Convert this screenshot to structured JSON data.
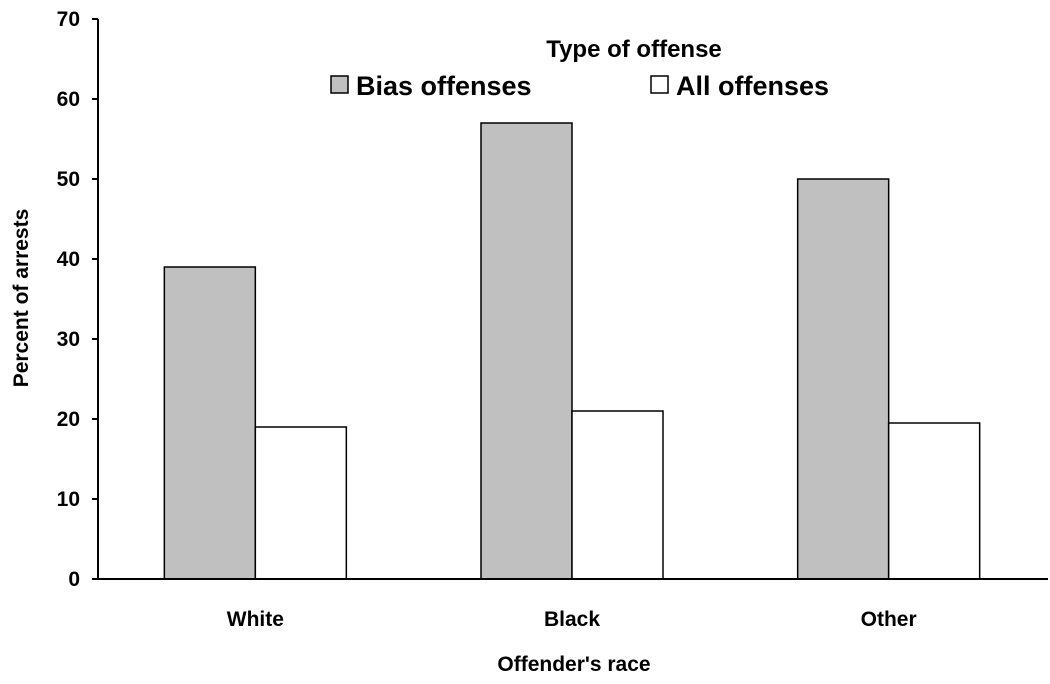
{
  "chart_data": {
    "type": "bar",
    "xlabel": "Offender's race",
    "ylabel": "Percent of arrests",
    "ylim": [
      0,
      70
    ],
    "yticks": [
      0,
      10,
      20,
      30,
      40,
      50,
      60,
      70
    ],
    "categories": [
      "White",
      "Black",
      "Other"
    ],
    "legend": {
      "title": "Type of offense",
      "placement": "top-center"
    },
    "series": [
      {
        "name": "Bias offenses",
        "values": [
          39,
          57,
          50
        ],
        "color": "#c0c0c0"
      },
      {
        "name": "All offenses",
        "values": [
          19,
          21,
          19.5
        ],
        "color": "#ffffff"
      }
    ],
    "grid": false
  }
}
